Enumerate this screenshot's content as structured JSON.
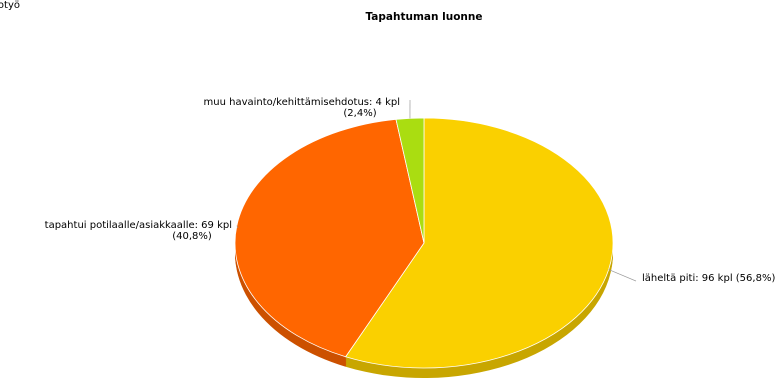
{
  "corner_text": "totyö",
  "chart_data": {
    "type": "pie",
    "title": "Tapahtuman luonne",
    "values": [
      96,
      69,
      4
    ],
    "value_labels": [
      [
        "läheltä piti: 96 kpl (56,8%)"
      ],
      [
        "tapahtui potilaalle/asiakkaalle: 69 kpl",
        "(40,8%)"
      ],
      [
        "muu havainto/kehittämisehdotus: 4 kpl",
        "(2,4%)"
      ]
    ],
    "colors": [
      "#fad000",
      "#ff6600",
      "#aadd11"
    ]
  }
}
